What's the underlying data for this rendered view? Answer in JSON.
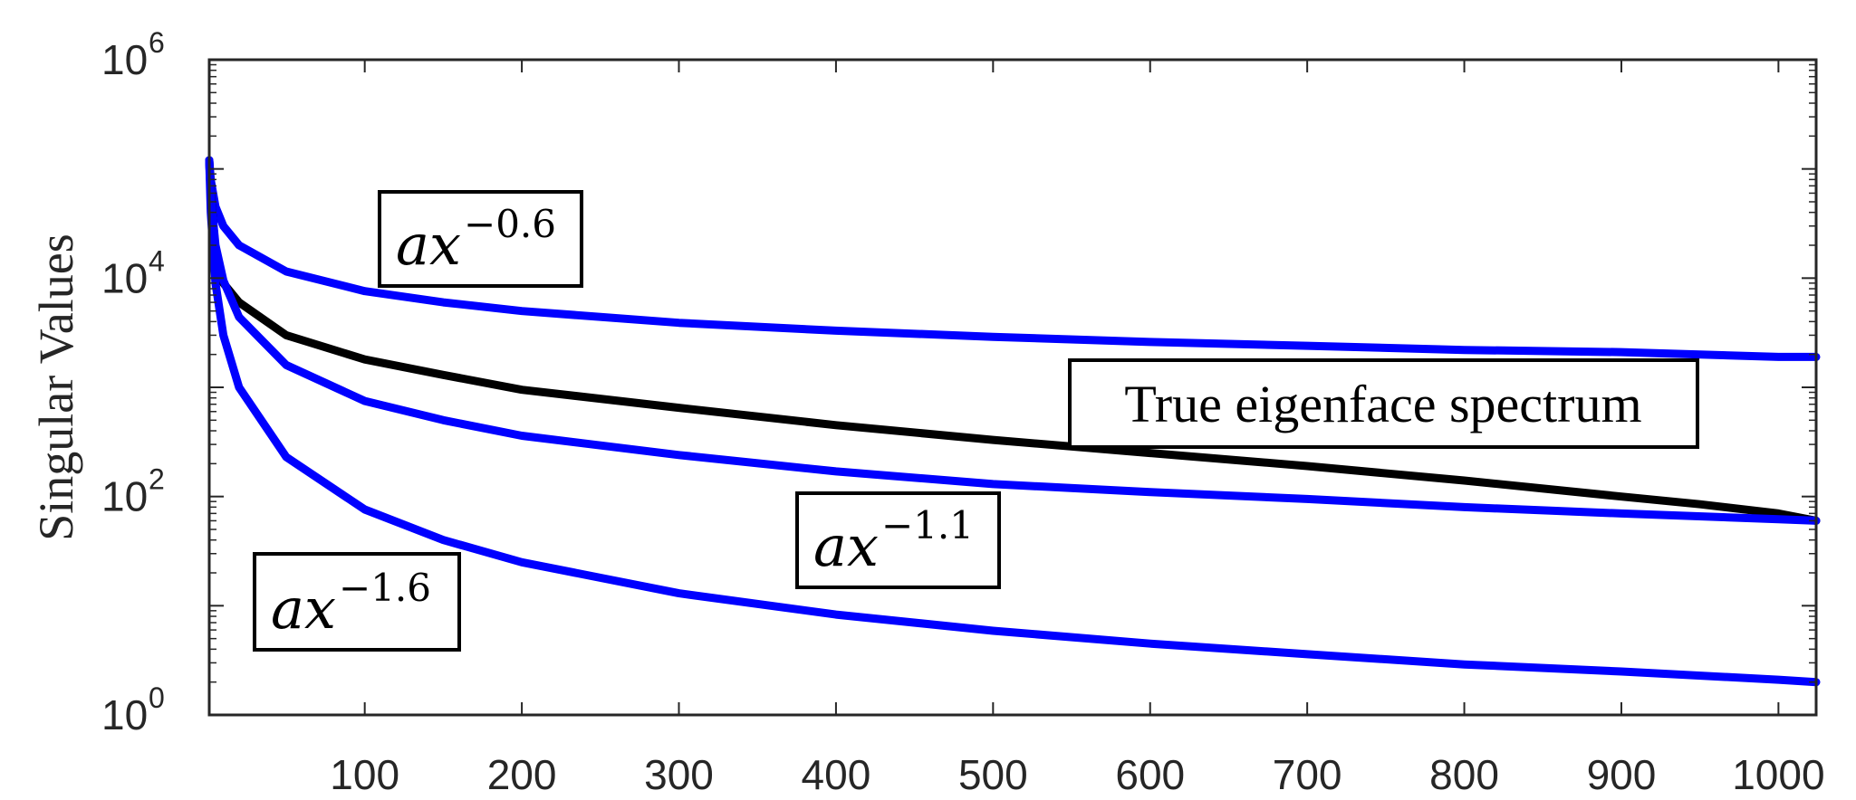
{
  "chart_data": {
    "type": "line",
    "title": "",
    "xlabel": "",
    "ylabel": "Singular Values",
    "xlim": [
      1,
      1024
    ],
    "ylim": [
      1,
      1000000
    ],
    "yscale": "log",
    "grid": false,
    "x_ticks": [
      100,
      200,
      300,
      400,
      500,
      600,
      700,
      800,
      900,
      1000
    ],
    "y_ticks": [
      {
        "base": "10",
        "exp": "0",
        "value": 1
      },
      {
        "base": "10",
        "exp": "2",
        "value": 100
      },
      {
        "base": "10",
        "exp": "4",
        "value": 10000
      },
      {
        "base": "10",
        "exp": "6",
        "value": 1000000
      }
    ],
    "colors": {
      "power_law": "#0000ff",
      "true_spectrum": "#000000"
    },
    "series": [
      {
        "color": "#0000ff",
        "x": [
          1,
          2,
          5,
          10,
          20,
          50,
          100,
          150,
          200,
          300,
          400,
          500,
          600,
          700,
          800,
          900,
          1000,
          1024
        ],
        "y": [
          120000,
          79000,
          45000,
          30000,
          20000,
          11500,
          7600,
          6000,
          5000,
          3900,
          3300,
          2900,
          2600,
          2400,
          2200,
          2100,
          1900,
          1900
        ]
      },
      {
        "color": "#000000",
        "x": [
          1,
          2,
          5,
          10,
          20,
          50,
          100,
          150,
          200,
          300,
          400,
          500,
          600,
          700,
          800,
          900,
          950,
          1000,
          1024
        ],
        "y": [
          120000,
          60000,
          18000,
          9000,
          6000,
          3000,
          1800,
          1300,
          950,
          650,
          450,
          330,
          250,
          190,
          140,
          100,
          85,
          70,
          60
        ]
      },
      {
        "color": "#0000ff",
        "x": [
          1,
          2,
          5,
          10,
          20,
          50,
          100,
          150,
          200,
          300,
          400,
          500,
          600,
          700,
          800,
          900,
          1000,
          1024
        ],
        "y": [
          120000,
          56000,
          20000,
          9500,
          4400,
          1600,
          750,
          500,
          360,
          240,
          170,
          130,
          110,
          95,
          80,
          70,
          62,
          60
        ]
      },
      {
        "color": "#0000ff",
        "x": [
          1,
          2,
          5,
          10,
          20,
          50,
          100,
          150,
          200,
          300,
          400,
          500,
          600,
          700,
          800,
          900,
          1000,
          1024
        ],
        "y": [
          120000,
          40000,
          9000,
          3000,
          1000,
          230,
          76,
          40,
          25,
          13,
          8.3,
          5.9,
          4.5,
          3.6,
          2.9,
          2.5,
          2.1,
          2.0
        ]
      }
    ],
    "annotations": [
      {
        "base": "ax",
        "exp": "−0.6"
      },
      {
        "plain": "True eigenface spectrum"
      },
      {
        "base": "ax",
        "exp": "−1.1"
      },
      {
        "base": "ax",
        "exp": "−1.6"
      }
    ]
  }
}
